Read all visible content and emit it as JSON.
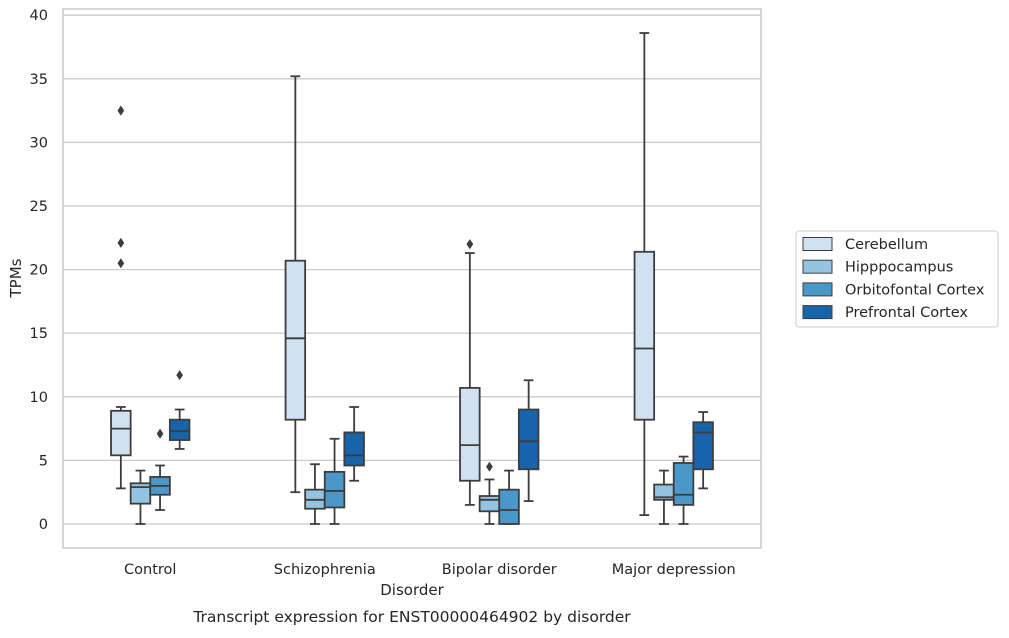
{
  "chart_data": {
    "type": "box",
    "xlabel": "Disorder",
    "ylabel": "TPMs",
    "caption": "Transcript expression for ENST00000464902 by disorder",
    "categories": [
      "Control",
      "Schizophrenia",
      "Bipolar disorder",
      "Major depression"
    ],
    "ylim": [
      -1.8,
      40.6
    ],
    "yticks": [
      0,
      5,
      10,
      15,
      20,
      25,
      30,
      35,
      40
    ],
    "grid": "horizontal",
    "legend_position": "right",
    "series": [
      {
        "name": "Cerebellum",
        "color": "#d0e1f2",
        "boxes": [
          {
            "min": 2.8,
            "q1": 5.4,
            "median": 7.5,
            "q3": 8.9,
            "max": 9.2,
            "outliers": [
              20.5,
              22.1,
              32.5
            ]
          },
          {
            "min": 2.5,
            "q1": 8.2,
            "median": 14.6,
            "q3": 20.7,
            "max": 35.2,
            "outliers": []
          },
          {
            "min": 1.5,
            "q1": 3.4,
            "median": 6.2,
            "q3": 10.7,
            "max": 21.3,
            "outliers": [
              22.0
            ]
          },
          {
            "min": 0.7,
            "q1": 8.2,
            "median": 13.8,
            "q3": 21.4,
            "max": 38.6,
            "outliers": []
          }
        ]
      },
      {
        "name": "Hipppocampus",
        "color": "#94c4df",
        "boxes": [
          {
            "min": 0.0,
            "q1": 1.6,
            "median": 2.9,
            "q3": 3.2,
            "max": 4.2,
            "outliers": []
          },
          {
            "min": 0.0,
            "q1": 1.2,
            "median": 1.9,
            "q3": 2.7,
            "max": 4.7,
            "outliers": []
          },
          {
            "min": 0.0,
            "q1": 1.0,
            "median": 1.9,
            "q3": 2.2,
            "max": 3.5,
            "outliers": [
              4.5
            ]
          },
          {
            "min": 0.0,
            "q1": 1.9,
            "median": 2.1,
            "q3": 3.1,
            "max": 4.2,
            "outliers": []
          }
        ]
      },
      {
        "name": "Orbitofontal Cortex",
        "color": "#4a98c9",
        "boxes": [
          {
            "min": 1.1,
            "q1": 2.3,
            "median": 3.0,
            "q3": 3.7,
            "max": 4.6,
            "outliers": [
              7.1
            ]
          },
          {
            "min": 0.0,
            "q1": 1.3,
            "median": 2.6,
            "q3": 4.1,
            "max": 6.7,
            "outliers": []
          },
          {
            "min": 0.0,
            "q1": 0.0,
            "median": 1.1,
            "q3": 2.7,
            "max": 4.2,
            "outliers": []
          },
          {
            "min": 0.0,
            "q1": 1.5,
            "median": 2.3,
            "q3": 4.8,
            "max": 5.3,
            "outliers": []
          }
        ]
      },
      {
        "name": "Prefrontal Cortex",
        "color": "#1764ab",
        "boxes": [
          {
            "min": 5.9,
            "q1": 6.6,
            "median": 7.3,
            "q3": 8.2,
            "max": 9.0,
            "outliers": [
              11.7
            ]
          },
          {
            "min": 3.4,
            "q1": 4.6,
            "median": 5.4,
            "q3": 7.2,
            "max": 9.2,
            "outliers": []
          },
          {
            "min": 1.8,
            "q1": 4.3,
            "median": 6.5,
            "q3": 9.0,
            "max": 11.3,
            "outliers": []
          },
          {
            "min": 2.8,
            "q1": 4.3,
            "median": 7.2,
            "q3": 8.0,
            "max": 8.8,
            "outliers": []
          }
        ]
      }
    ]
  }
}
